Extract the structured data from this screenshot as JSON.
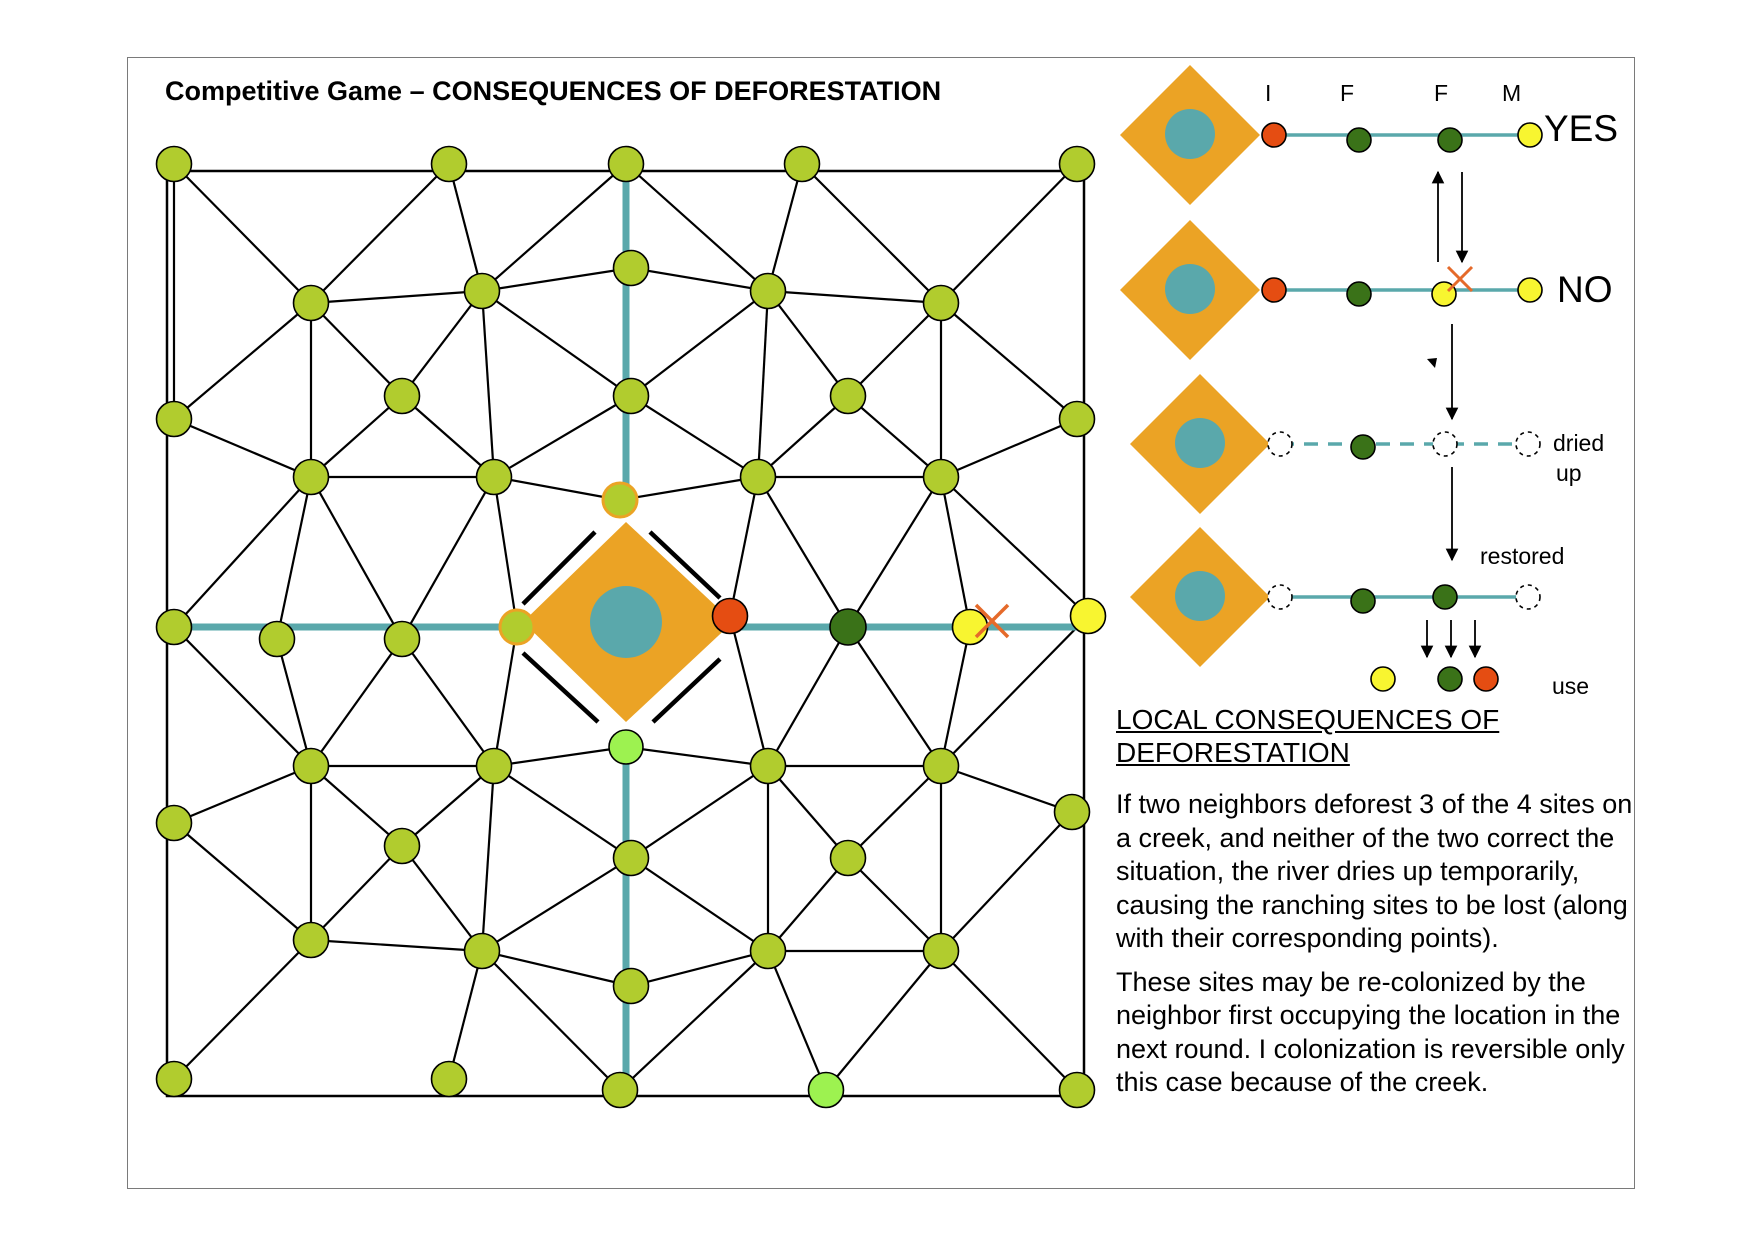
{
  "title": "Competitive Game – CONSEQUENCES OF DEFORESTATION",
  "colors": {
    "node_green": "#b1cc2e",
    "node_light_green": "#9df250",
    "node_dark_green": "#3a7218",
    "node_yellow": "#f8f530",
    "node_red": "#e54d12",
    "village_orange": "#eba325",
    "water_teal": "#5aa8ab",
    "cross_orange": "#e56a2a"
  },
  "legend": {
    "column_labels": [
      "I",
      "F",
      "F",
      "M"
    ],
    "yes_label": "YES",
    "no_label": "NO",
    "dried_up_label": [
      "dried",
      "up"
    ],
    "restored_label": "restored",
    "use_label": "use"
  },
  "section_heading": "LOCAL CONSEQUENCES OF DEFORESTATION",
  "paragraphs": [
    "If two neighbors deforest 3 of the 4 sites on a creek, and neither of the two correct the situation, the river dries up temporarily, causing the ranching sites to be lost (along with their corresponding points).",
    "These sites may be re-colonized by the neighbor first occupying the location in the next round. I colonization is reversible only this case because of the creek."
  ]
}
